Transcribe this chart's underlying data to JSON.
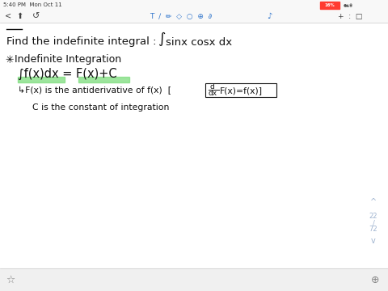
{
  "bg_color": "#ffffff",
  "status_bar_text": "5:40 PM  Mon Oct 11",
  "battery_color": "#ff3b30",
  "battery_pct": "16%",
  "highlight_color": "#7ddd7d",
  "scrollbar_color": "#a0b4d0",
  "page_up": "^",
  "page_num1": "22",
  "page_slash": "/",
  "page_num2": "72",
  "page_down": "v",
  "top_bar_bg": "#f0f0f0",
  "bottom_bar_bg": "#f0f0f0",
  "separator_color": "#cccccc",
  "text_color": "#111111",
  "gray_color": "#888888",
  "figw": 4.8,
  "figh": 3.6,
  "dpi": 100
}
